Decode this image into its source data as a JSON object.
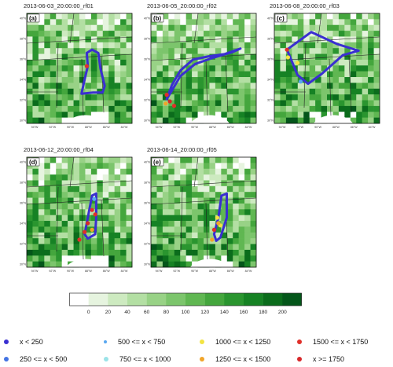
{
  "panels": [
    {
      "title": "2013-06-03_20:00:00_rf01",
      "label": "(a)"
    },
    {
      "title": "2013-06-05_20:00:00_rf02",
      "label": "(b)"
    },
    {
      "title": "2013-06-08_20:00:00_rf03",
      "label": "(c)"
    },
    {
      "title": "2013-06-12_20:00:00_rf04",
      "label": "(d)"
    },
    {
      "title": "2013-06-14_20:00:00_rf05",
      "label": "(e)"
    }
  ],
  "lat_labels": [
    "40°N",
    "38°N",
    "36°N",
    "34°N",
    "32°N",
    "30°N"
  ],
  "lon_labels": [
    "94°W",
    "92°W",
    "90°W",
    "88°W",
    "86°W",
    "84°W"
  ],
  "colorbar": {
    "ticks": [
      "0",
      "20",
      "40",
      "60",
      "80",
      "100",
      "120",
      "140",
      "160",
      "180",
      "200"
    ],
    "colors": [
      "#ffffff",
      "#e6f4df",
      "#cdeac0",
      "#b3dfa3",
      "#98d286",
      "#7cc56c",
      "#60b752",
      "#44a63d",
      "#2a952f",
      "#168224",
      "#0b6c1c",
      "#04561a"
    ]
  },
  "legend": [
    {
      "label": "x < 250",
      "color": "#3a2fd1"
    },
    {
      "label": "500 <= x < 750",
      "color": "#58a7f0"
    },
    {
      "label": "1000 <= x < 1250",
      "color": "#f3e443"
    },
    {
      "label": "1500 <= x < 1750",
      "color": "#e0302a"
    },
    {
      "label": "250 <= x < 500",
      "color": "#4474e3"
    },
    {
      "label": "750 <= x < 1000",
      "color": "#9be3e8"
    },
    {
      "label": "1250 <= x < 1500",
      "color": "#f1a52a"
    },
    {
      "label": "x >= 1750",
      "color": "#d7282a"
    }
  ]
}
